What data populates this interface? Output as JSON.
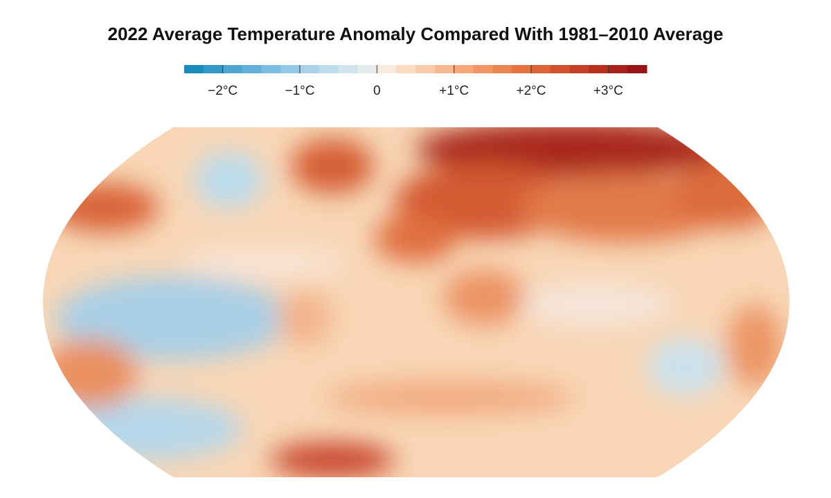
{
  "title": "2022 Average Temperature Anomaly Compared With 1981–2010 Average",
  "legend": {
    "lim": [
      -2.5,
      3.5
    ],
    "ticks": [
      {
        "value": -2,
        "label": "−2°C"
      },
      {
        "value": -1,
        "label": "−1°C"
      },
      0,
      {
        "value": 1,
        "label": "+1°C"
      },
      {
        "value": 2,
        "label": "+2°C"
      },
      {
        "value": 3,
        "label": "+3°C"
      }
    ],
    "colors": [
      "#1a8bb8",
      "#3399c7",
      "#4da6d1",
      "#63b1d8",
      "#7bbde0",
      "#93c9e5",
      "#a9d3ea",
      "#bddcec",
      "#d0e4ee",
      "#e6ecee",
      "#f7ebdf",
      "#f9dcc2",
      "#f8ccaa",
      "#f6b98f",
      "#f4a777",
      "#f09563",
      "#eb8451",
      "#e57342",
      "#dc6237",
      "#d1512d",
      "#c54026",
      "#b7301f",
      "#a7211a",
      "#981516"
    ]
  }
}
